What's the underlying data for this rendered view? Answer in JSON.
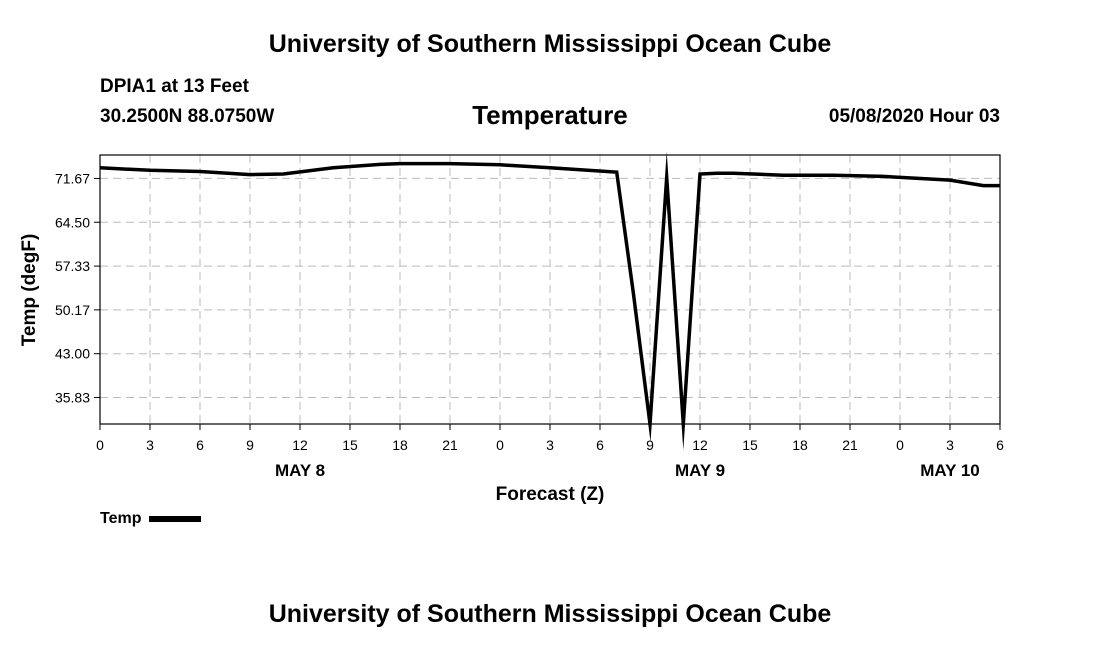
{
  "header": {
    "title": "University of Southern Mississippi Ocean Cube",
    "station": "DPIA1 at 13 Feet",
    "coords": "30.2500N 88.0750W",
    "timestamp": "05/08/2020 Hour 03"
  },
  "footer": {
    "title": "University of Southern Mississippi Ocean Cube"
  },
  "legend": {
    "label": "Temp"
  },
  "chart_data": {
    "type": "line",
    "title": "Temperature",
    "xlabel": "Forecast (Z)",
    "ylabel": "Temp (degF)",
    "x_unit": "forecast hours",
    "xlim": [
      0,
      54
    ],
    "ylim": [
      31.5,
      75.5
    ],
    "y_ticks": [
      "71.67",
      "64.50",
      "57.33",
      "50.17",
      "43.00",
      "35.83"
    ],
    "x_tick_labels": [
      "0",
      "3",
      "6",
      "9",
      "12",
      "15",
      "18",
      "21",
      "0",
      "3",
      "6",
      "9",
      "12",
      "15",
      "18",
      "21",
      "0",
      "3",
      "6"
    ],
    "x_tick_step": 3,
    "day_labels": [
      {
        "label": "MAY 8",
        "x": 12
      },
      {
        "label": "MAY 9",
        "x": 36
      },
      {
        "label": "MAY 10",
        "x": 51
      }
    ],
    "grid": true,
    "legend_position": "bottom-left",
    "series": [
      {
        "color": "#000000",
        "x": [
          0,
          3,
          6,
          9,
          11,
          14,
          17,
          18,
          21,
          24,
          27,
          31,
          32,
          33,
          34,
          35,
          36,
          37,
          38,
          41,
          44,
          47,
          51,
          53,
          54
        ],
        "y": [
          73.4,
          73.0,
          72.8,
          72.3,
          72.4,
          73.4,
          74.0,
          74.1,
          74.1,
          73.9,
          73.4,
          72.7,
          53.0,
          31.5,
          71.8,
          31.5,
          72.4,
          72.5,
          72.5,
          72.2,
          72.2,
          72.0,
          71.4,
          70.5,
          70.5
        ]
      }
    ]
  }
}
